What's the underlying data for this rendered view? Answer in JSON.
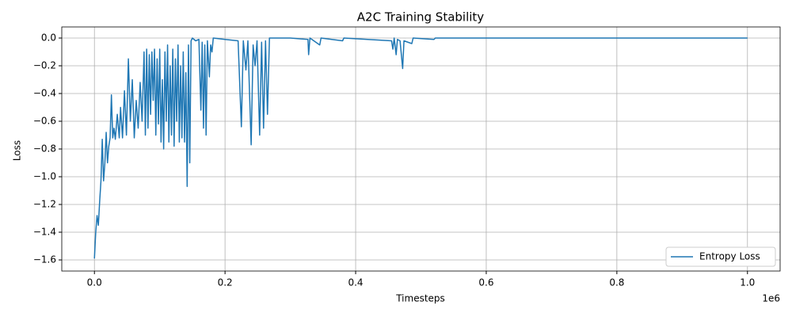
{
  "chart_data": {
    "type": "line",
    "title": "A2C Training Stability",
    "xlabel": "Timesteps",
    "ylabel": "Loss",
    "x_offset_label": "1e6",
    "xlim": [
      -50000,
      1050000
    ],
    "ylim": [
      -1.68,
      0.08
    ],
    "xticks": [
      {
        "value": 0,
        "label": "0.0"
      },
      {
        "value": 200000,
        "label": "0.2"
      },
      {
        "value": 400000,
        "label": "0.4"
      },
      {
        "value": 600000,
        "label": "0.6"
      },
      {
        "value": 800000,
        "label": "0.8"
      },
      {
        "value": 1000000,
        "label": "1.0"
      }
    ],
    "yticks": [
      {
        "value": -1.6,
        "label": "−1.6"
      },
      {
        "value": -1.4,
        "label": "−1.4"
      },
      {
        "value": -1.2,
        "label": "−1.2"
      },
      {
        "value": -1.0,
        "label": "−1.0"
      },
      {
        "value": -0.8,
        "label": "−0.8"
      },
      {
        "value": -0.6,
        "label": "−0.6"
      },
      {
        "value": -0.4,
        "label": "−0.4"
      },
      {
        "value": -0.2,
        "label": "−0.2"
      },
      {
        "value": 0,
        "label": "0.0"
      }
    ],
    "grid": true,
    "legend": "lower right",
    "series": [
      {
        "name": "Entropy Loss",
        "color": "#1f77b4",
        "x": [
          0,
          2000,
          4000,
          6000,
          8000,
          10000,
          12000,
          14000,
          16000,
          18000,
          20000,
          22000,
          24000,
          26000,
          28000,
          30000,
          32000,
          35000,
          38000,
          40000,
          43000,
          46000,
          49000,
          52000,
          55000,
          58000,
          61000,
          64000,
          67000,
          70000,
          73000,
          76000,
          78000,
          80000,
          82000,
          84000,
          86000,
          88000,
          90000,
          92000,
          94000,
          96000,
          98000,
          100000,
          102000,
          104000,
          106000,
          108000,
          110000,
          112000,
          114000,
          116000,
          118000,
          120000,
          122000,
          124000,
          126000,
          128000,
          130000,
          132000,
          134000,
          136000,
          138000,
          140000,
          142000,
          144000,
          146000,
          148000,
          150000,
          155000,
          160000,
          163000,
          165000,
          167000,
          169000,
          171000,
          173000,
          176000,
          178000,
          180000,
          182000,
          200000,
          220000,
          225000,
          228000,
          232000,
          235000,
          240000,
          243000,
          246000,
          249000,
          253000,
          256000,
          259000,
          262000,
          265000,
          268000,
          300000,
          327000,
          328000,
          330000,
          345000,
          347000,
          380000,
          382000,
          455000,
          457000,
          459000,
          462000,
          464000,
          468000,
          472000,
          474000,
          486000,
          488000,
          520000,
          522000,
          1000000
        ],
        "values": [
          -1.59,
          -1.4,
          -1.28,
          -1.35,
          -1.18,
          -1.03,
          -0.73,
          -1.03,
          -0.9,
          -0.68,
          -0.9,
          -0.78,
          -0.72,
          -0.41,
          -0.72,
          -0.65,
          -0.73,
          -0.55,
          -0.72,
          -0.5,
          -0.72,
          -0.38,
          -0.7,
          -0.15,
          -0.6,
          -0.3,
          -0.72,
          -0.45,
          -0.65,
          -0.32,
          -0.6,
          -0.1,
          -0.7,
          -0.08,
          -0.65,
          -0.12,
          -0.55,
          -0.1,
          -0.45,
          -0.08,
          -0.7,
          -0.15,
          -0.62,
          -0.08,
          -0.75,
          -0.3,
          -0.8,
          -0.1,
          -0.6,
          -0.05,
          -0.75,
          -0.2,
          -0.7,
          -0.08,
          -0.78,
          -0.15,
          -0.6,
          -0.05,
          -0.75,
          -0.2,
          -0.72,
          -0.1,
          -0.75,
          -0.25,
          -1.07,
          -0.05,
          -0.9,
          -0.02,
          0,
          -0.02,
          -0.01,
          -0.52,
          -0.03,
          -0.65,
          -0.05,
          -0.7,
          -0.02,
          -0.28,
          -0.05,
          -0.1,
          0,
          -0.01,
          -0.02,
          -0.64,
          -0.02,
          -0.23,
          -0.02,
          -0.77,
          -0.05,
          -0.2,
          -0.02,
          -0.7,
          -0.03,
          -0.65,
          -0.02,
          -0.55,
          0,
          0,
          -0.01,
          -0.12,
          0,
          -0.05,
          0,
          -0.02,
          0,
          -0.02,
          -0.08,
          0,
          -0.12,
          -0.01,
          -0.02,
          -0.22,
          -0.02,
          -0.04,
          0,
          -0.01,
          0,
          0
        ]
      }
    ]
  }
}
